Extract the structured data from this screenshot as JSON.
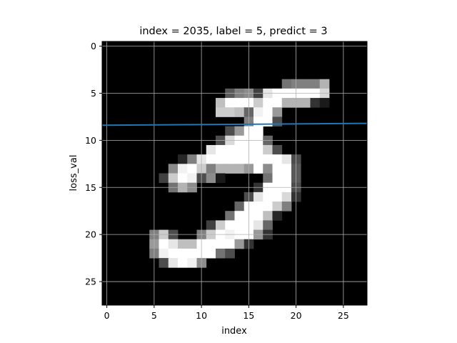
{
  "chart_data": {
    "type": "heatmap",
    "title": "index = 2035, label = 5, predict = 3",
    "xlabel": "index",
    "ylabel": "loss_val",
    "xlim": [
      -0.5,
      27.5
    ],
    "ylim": [
      27.5,
      -0.5
    ],
    "x_ticks": [
      0,
      5,
      10,
      15,
      20,
      25
    ],
    "y_ticks": [
      0,
      5,
      10,
      15,
      20,
      25
    ],
    "grid": true,
    "colormap": "gray",
    "colors": {
      "line": "#1f77b4",
      "grid": "#b0b0b0",
      "background": "#000000"
    },
    "image_shape": [
      28,
      28
    ],
    "pixels": [
      {
        "r": 4,
        "c": 19,
        "v": 0.45
      },
      {
        "r": 4,
        "c": 20,
        "v": 0.5
      },
      {
        "r": 4,
        "c": 21,
        "v": 0.5
      },
      {
        "r": 4,
        "c": 22,
        "v": 0.5
      },
      {
        "r": 4,
        "c": 23,
        "v": 0.7
      },
      {
        "r": 5,
        "c": 13,
        "v": 0.35
      },
      {
        "r": 5,
        "c": 14,
        "v": 0.5
      },
      {
        "r": 5,
        "c": 15,
        "v": 0.55
      },
      {
        "r": 5,
        "c": 16,
        "v": 0.25
      },
      {
        "r": 5,
        "c": 17,
        "v": 0.9
      },
      {
        "r": 5,
        "c": 18,
        "v": 1
      },
      {
        "r": 5,
        "c": 19,
        "v": 1
      },
      {
        "r": 5,
        "c": 20,
        "v": 1
      },
      {
        "r": 5,
        "c": 21,
        "v": 1
      },
      {
        "r": 5,
        "c": 22,
        "v": 1
      },
      {
        "r": 5,
        "c": 23,
        "v": 0.85
      },
      {
        "r": 6,
        "c": 12,
        "v": 0.75
      },
      {
        "r": 6,
        "c": 13,
        "v": 1
      },
      {
        "r": 6,
        "c": 14,
        "v": 1
      },
      {
        "r": 6,
        "c": 15,
        "v": 1
      },
      {
        "r": 6,
        "c": 16,
        "v": 0.8
      },
      {
        "r": 6,
        "c": 17,
        "v": 1
      },
      {
        "r": 6,
        "c": 18,
        "v": 1
      },
      {
        "r": 6,
        "c": 19,
        "v": 0.7
      },
      {
        "r": 6,
        "c": 20,
        "v": 0.7
      },
      {
        "r": 6,
        "c": 21,
        "v": 0.7
      },
      {
        "r": 6,
        "c": 22,
        "v": 0.2
      },
      {
        "r": 6,
        "c": 23,
        "v": 0.1
      },
      {
        "r": 7,
        "c": 12,
        "v": 0.8
      },
      {
        "r": 7,
        "c": 13,
        "v": 0.8
      },
      {
        "r": 7,
        "c": 14,
        "v": 0.75
      },
      {
        "r": 7,
        "c": 15,
        "v": 0.4
      },
      {
        "r": 7,
        "c": 16,
        "v": 0.95
      },
      {
        "r": 7,
        "c": 17,
        "v": 1
      },
      {
        "r": 7,
        "c": 18,
        "v": 0.6
      },
      {
        "r": 8,
        "c": 15,
        "v": 0.5
      },
      {
        "r": 8,
        "c": 16,
        "v": 1
      },
      {
        "r": 8,
        "c": 17,
        "v": 1
      },
      {
        "r": 8,
        "c": 18,
        "v": 0.3
      },
      {
        "r": 9,
        "c": 13,
        "v": 0.3
      },
      {
        "r": 9,
        "c": 14,
        "v": 0.6
      },
      {
        "r": 9,
        "c": 15,
        "v": 1
      },
      {
        "r": 9,
        "c": 16,
        "v": 1
      },
      {
        "r": 10,
        "c": 12,
        "v": 0.3
      },
      {
        "r": 10,
        "c": 13,
        "v": 0.85
      },
      {
        "r": 10,
        "c": 14,
        "v": 1
      },
      {
        "r": 10,
        "c": 15,
        "v": 1
      },
      {
        "r": 10,
        "c": 16,
        "v": 1
      },
      {
        "r": 10,
        "c": 17,
        "v": 0.4
      },
      {
        "r": 11,
        "c": 11,
        "v": 0.9
      },
      {
        "r": 11,
        "c": 12,
        "v": 1
      },
      {
        "r": 11,
        "c": 13,
        "v": 1
      },
      {
        "r": 11,
        "c": 14,
        "v": 1
      },
      {
        "r": 11,
        "c": 15,
        "v": 1
      },
      {
        "r": 11,
        "c": 16,
        "v": 1
      },
      {
        "r": 11,
        "c": 17,
        "v": 0.8
      },
      {
        "r": 11,
        "c": 18,
        "v": 0.3
      },
      {
        "r": 12,
        "c": 8,
        "v": 0.15
      },
      {
        "r": 12,
        "c": 9,
        "v": 0.5
      },
      {
        "r": 12,
        "c": 10,
        "v": 0.9
      },
      {
        "r": 12,
        "c": 11,
        "v": 1
      },
      {
        "r": 12,
        "c": 12,
        "v": 1
      },
      {
        "r": 12,
        "c": 13,
        "v": 1
      },
      {
        "r": 12,
        "c": 14,
        "v": 1
      },
      {
        "r": 12,
        "c": 15,
        "v": 1
      },
      {
        "r": 12,
        "c": 16,
        "v": 1
      },
      {
        "r": 12,
        "c": 17,
        "v": 1
      },
      {
        "r": 12,
        "c": 18,
        "v": 1
      },
      {
        "r": 12,
        "c": 19,
        "v": 0.9
      },
      {
        "r": 12,
        "c": 20,
        "v": 0.3
      },
      {
        "r": 13,
        "c": 7,
        "v": 0.55
      },
      {
        "r": 13,
        "c": 8,
        "v": 0.95
      },
      {
        "r": 13,
        "c": 9,
        "v": 1
      },
      {
        "r": 13,
        "c": 10,
        "v": 0.8
      },
      {
        "r": 13,
        "c": 11,
        "v": 0.5
      },
      {
        "r": 13,
        "c": 12,
        "v": 0.7
      },
      {
        "r": 13,
        "c": 13,
        "v": 0.7
      },
      {
        "r": 13,
        "c": 14,
        "v": 0.7
      },
      {
        "r": 13,
        "c": 15,
        "v": 0.6
      },
      {
        "r": 13,
        "c": 16,
        "v": 1
      },
      {
        "r": 13,
        "c": 17,
        "v": 0.55
      },
      {
        "r": 13,
        "c": 18,
        "v": 1
      },
      {
        "r": 13,
        "c": 19,
        "v": 1
      },
      {
        "r": 13,
        "c": 20,
        "v": 0.35
      },
      {
        "r": 14,
        "c": 6,
        "v": 0.25
      },
      {
        "r": 14,
        "c": 7,
        "v": 0.8
      },
      {
        "r": 14,
        "c": 8,
        "v": 1
      },
      {
        "r": 14,
        "c": 9,
        "v": 0.95
      },
      {
        "r": 14,
        "c": 10,
        "v": 0.3
      },
      {
        "r": 14,
        "c": 11,
        "v": 0.55
      },
      {
        "r": 14,
        "c": 12,
        "v": 0.1
      },
      {
        "r": 14,
        "c": 17,
        "v": 0.45
      },
      {
        "r": 14,
        "c": 18,
        "v": 1
      },
      {
        "r": 14,
        "c": 19,
        "v": 1
      },
      {
        "r": 14,
        "c": 20,
        "v": 0.35
      },
      {
        "r": 15,
        "c": 7,
        "v": 0.45
      },
      {
        "r": 15,
        "c": 8,
        "v": 0.7
      },
      {
        "r": 15,
        "c": 9,
        "v": 0.55
      },
      {
        "r": 15,
        "c": 16,
        "v": 0.2
      },
      {
        "r": 15,
        "c": 17,
        "v": 1
      },
      {
        "r": 15,
        "c": 18,
        "v": 1
      },
      {
        "r": 15,
        "c": 19,
        "v": 1
      },
      {
        "r": 15,
        "c": 20,
        "v": 0.3
      },
      {
        "r": 16,
        "c": 15,
        "v": 0.3
      },
      {
        "r": 16,
        "c": 16,
        "v": 0.9
      },
      {
        "r": 16,
        "c": 17,
        "v": 1
      },
      {
        "r": 16,
        "c": 18,
        "v": 1
      },
      {
        "r": 16,
        "c": 19,
        "v": 0.85
      },
      {
        "r": 16,
        "c": 20,
        "v": 0.2
      },
      {
        "r": 17,
        "c": 14,
        "v": 0.4
      },
      {
        "r": 17,
        "c": 15,
        "v": 1
      },
      {
        "r": 17,
        "c": 16,
        "v": 1
      },
      {
        "r": 17,
        "c": 17,
        "v": 1
      },
      {
        "r": 17,
        "c": 18,
        "v": 0.8
      },
      {
        "r": 17,
        "c": 19,
        "v": 0.5
      },
      {
        "r": 18,
        "c": 13,
        "v": 0.45
      },
      {
        "r": 18,
        "c": 14,
        "v": 1
      },
      {
        "r": 18,
        "c": 15,
        "v": 1
      },
      {
        "r": 18,
        "c": 16,
        "v": 1
      },
      {
        "r": 18,
        "c": 17,
        "v": 0.75
      },
      {
        "r": 18,
        "c": 18,
        "v": 0.15
      },
      {
        "r": 19,
        "c": 11,
        "v": 0.25
      },
      {
        "r": 19,
        "c": 12,
        "v": 0.8
      },
      {
        "r": 19,
        "c": 13,
        "v": 1
      },
      {
        "r": 19,
        "c": 14,
        "v": 1
      },
      {
        "r": 19,
        "c": 15,
        "v": 1
      },
      {
        "r": 19,
        "c": 16,
        "v": 0.9
      },
      {
        "r": 19,
        "c": 17,
        "v": 0.4
      },
      {
        "r": 20,
        "c": 5,
        "v": 0.5
      },
      {
        "r": 20,
        "c": 6,
        "v": 0.8
      },
      {
        "r": 20,
        "c": 7,
        "v": 0.3
      },
      {
        "r": 20,
        "c": 10,
        "v": 0.5
      },
      {
        "r": 20,
        "c": 11,
        "v": 0.8
      },
      {
        "r": 20,
        "c": 12,
        "v": 1
      },
      {
        "r": 20,
        "c": 13,
        "v": 0.95
      },
      {
        "r": 20,
        "c": 14,
        "v": 1
      },
      {
        "r": 20,
        "c": 15,
        "v": 1
      },
      {
        "r": 20,
        "c": 16,
        "v": 0.6
      },
      {
        "r": 20,
        "c": 17,
        "v": 0.2
      },
      {
        "r": 21,
        "c": 5,
        "v": 0.6
      },
      {
        "r": 21,
        "c": 6,
        "v": 1
      },
      {
        "r": 21,
        "c": 7,
        "v": 0.9
      },
      {
        "r": 21,
        "c": 8,
        "v": 0.75
      },
      {
        "r": 21,
        "c": 9,
        "v": 0.75
      },
      {
        "r": 21,
        "c": 10,
        "v": 1
      },
      {
        "r": 21,
        "c": 11,
        "v": 1
      },
      {
        "r": 21,
        "c": 12,
        "v": 1
      },
      {
        "r": 21,
        "c": 13,
        "v": 1
      },
      {
        "r": 21,
        "c": 14,
        "v": 0.6
      },
      {
        "r": 21,
        "c": 15,
        "v": 0.2
      },
      {
        "r": 22,
        "c": 5,
        "v": 0.5
      },
      {
        "r": 22,
        "c": 6,
        "v": 0.95
      },
      {
        "r": 22,
        "c": 7,
        "v": 1
      },
      {
        "r": 22,
        "c": 8,
        "v": 1
      },
      {
        "r": 22,
        "c": 9,
        "v": 1
      },
      {
        "r": 22,
        "c": 10,
        "v": 1
      },
      {
        "r": 22,
        "c": 11,
        "v": 1
      },
      {
        "r": 22,
        "c": 12,
        "v": 0.45
      },
      {
        "r": 22,
        "c": 13,
        "v": 0.3
      },
      {
        "r": 23,
        "c": 6,
        "v": 0.3
      },
      {
        "r": 23,
        "c": 7,
        "v": 0.9
      },
      {
        "r": 23,
        "c": 8,
        "v": 1
      },
      {
        "r": 23,
        "c": 9,
        "v": 0.95
      },
      {
        "r": 23,
        "c": 10,
        "v": 0.55
      }
    ],
    "line": {
      "x": [
        -0.5,
        27.5
      ],
      "y": [
        8.4,
        8.2
      ]
    }
  }
}
